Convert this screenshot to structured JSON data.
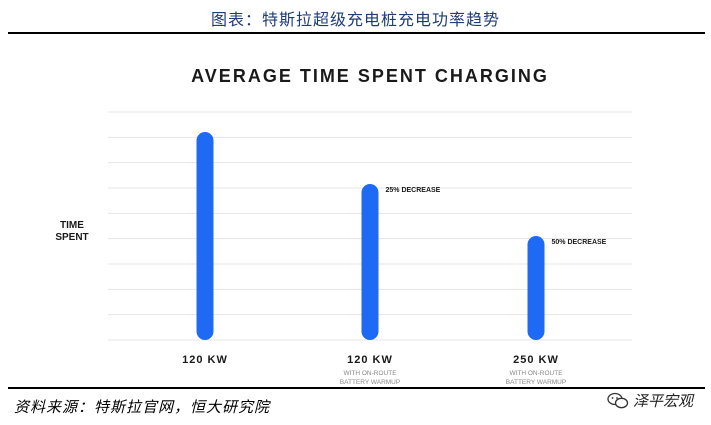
{
  "figure": {
    "title": "图表：特斯拉超级充电桩充电功率趋势",
    "source": "资料来源：特斯拉官网，恒大研究院",
    "watermark": "泽平宏观",
    "watermark_icon": "wechat-icon"
  },
  "chart_data": {
    "type": "bar",
    "title": "AVERAGE TIME SPENT CHARGING",
    "ylabel": "TIME SPENT",
    "ylabel_lines": [
      "TIME",
      "SPENT"
    ],
    "categories": [
      {
        "label": "120 KW",
        "sublabel_lines": []
      },
      {
        "label": "120 KW",
        "sublabel_lines": [
          "WITH ON-ROUTE",
          "BATTERY WARMUP"
        ]
      },
      {
        "label": "250 KW",
        "sublabel_lines": [
          "WITH ON-ROUTE",
          "BATTERY WARMUP"
        ]
      }
    ],
    "values": [
      100,
      75,
      50
    ],
    "annotations": [
      "",
      "25% DECREASE",
      "50% DECREASE"
    ],
    "ylim": [
      0,
      100
    ],
    "grid": true,
    "bar_color": "#1f6af5",
    "grid_color": "#e6e6e6"
  }
}
